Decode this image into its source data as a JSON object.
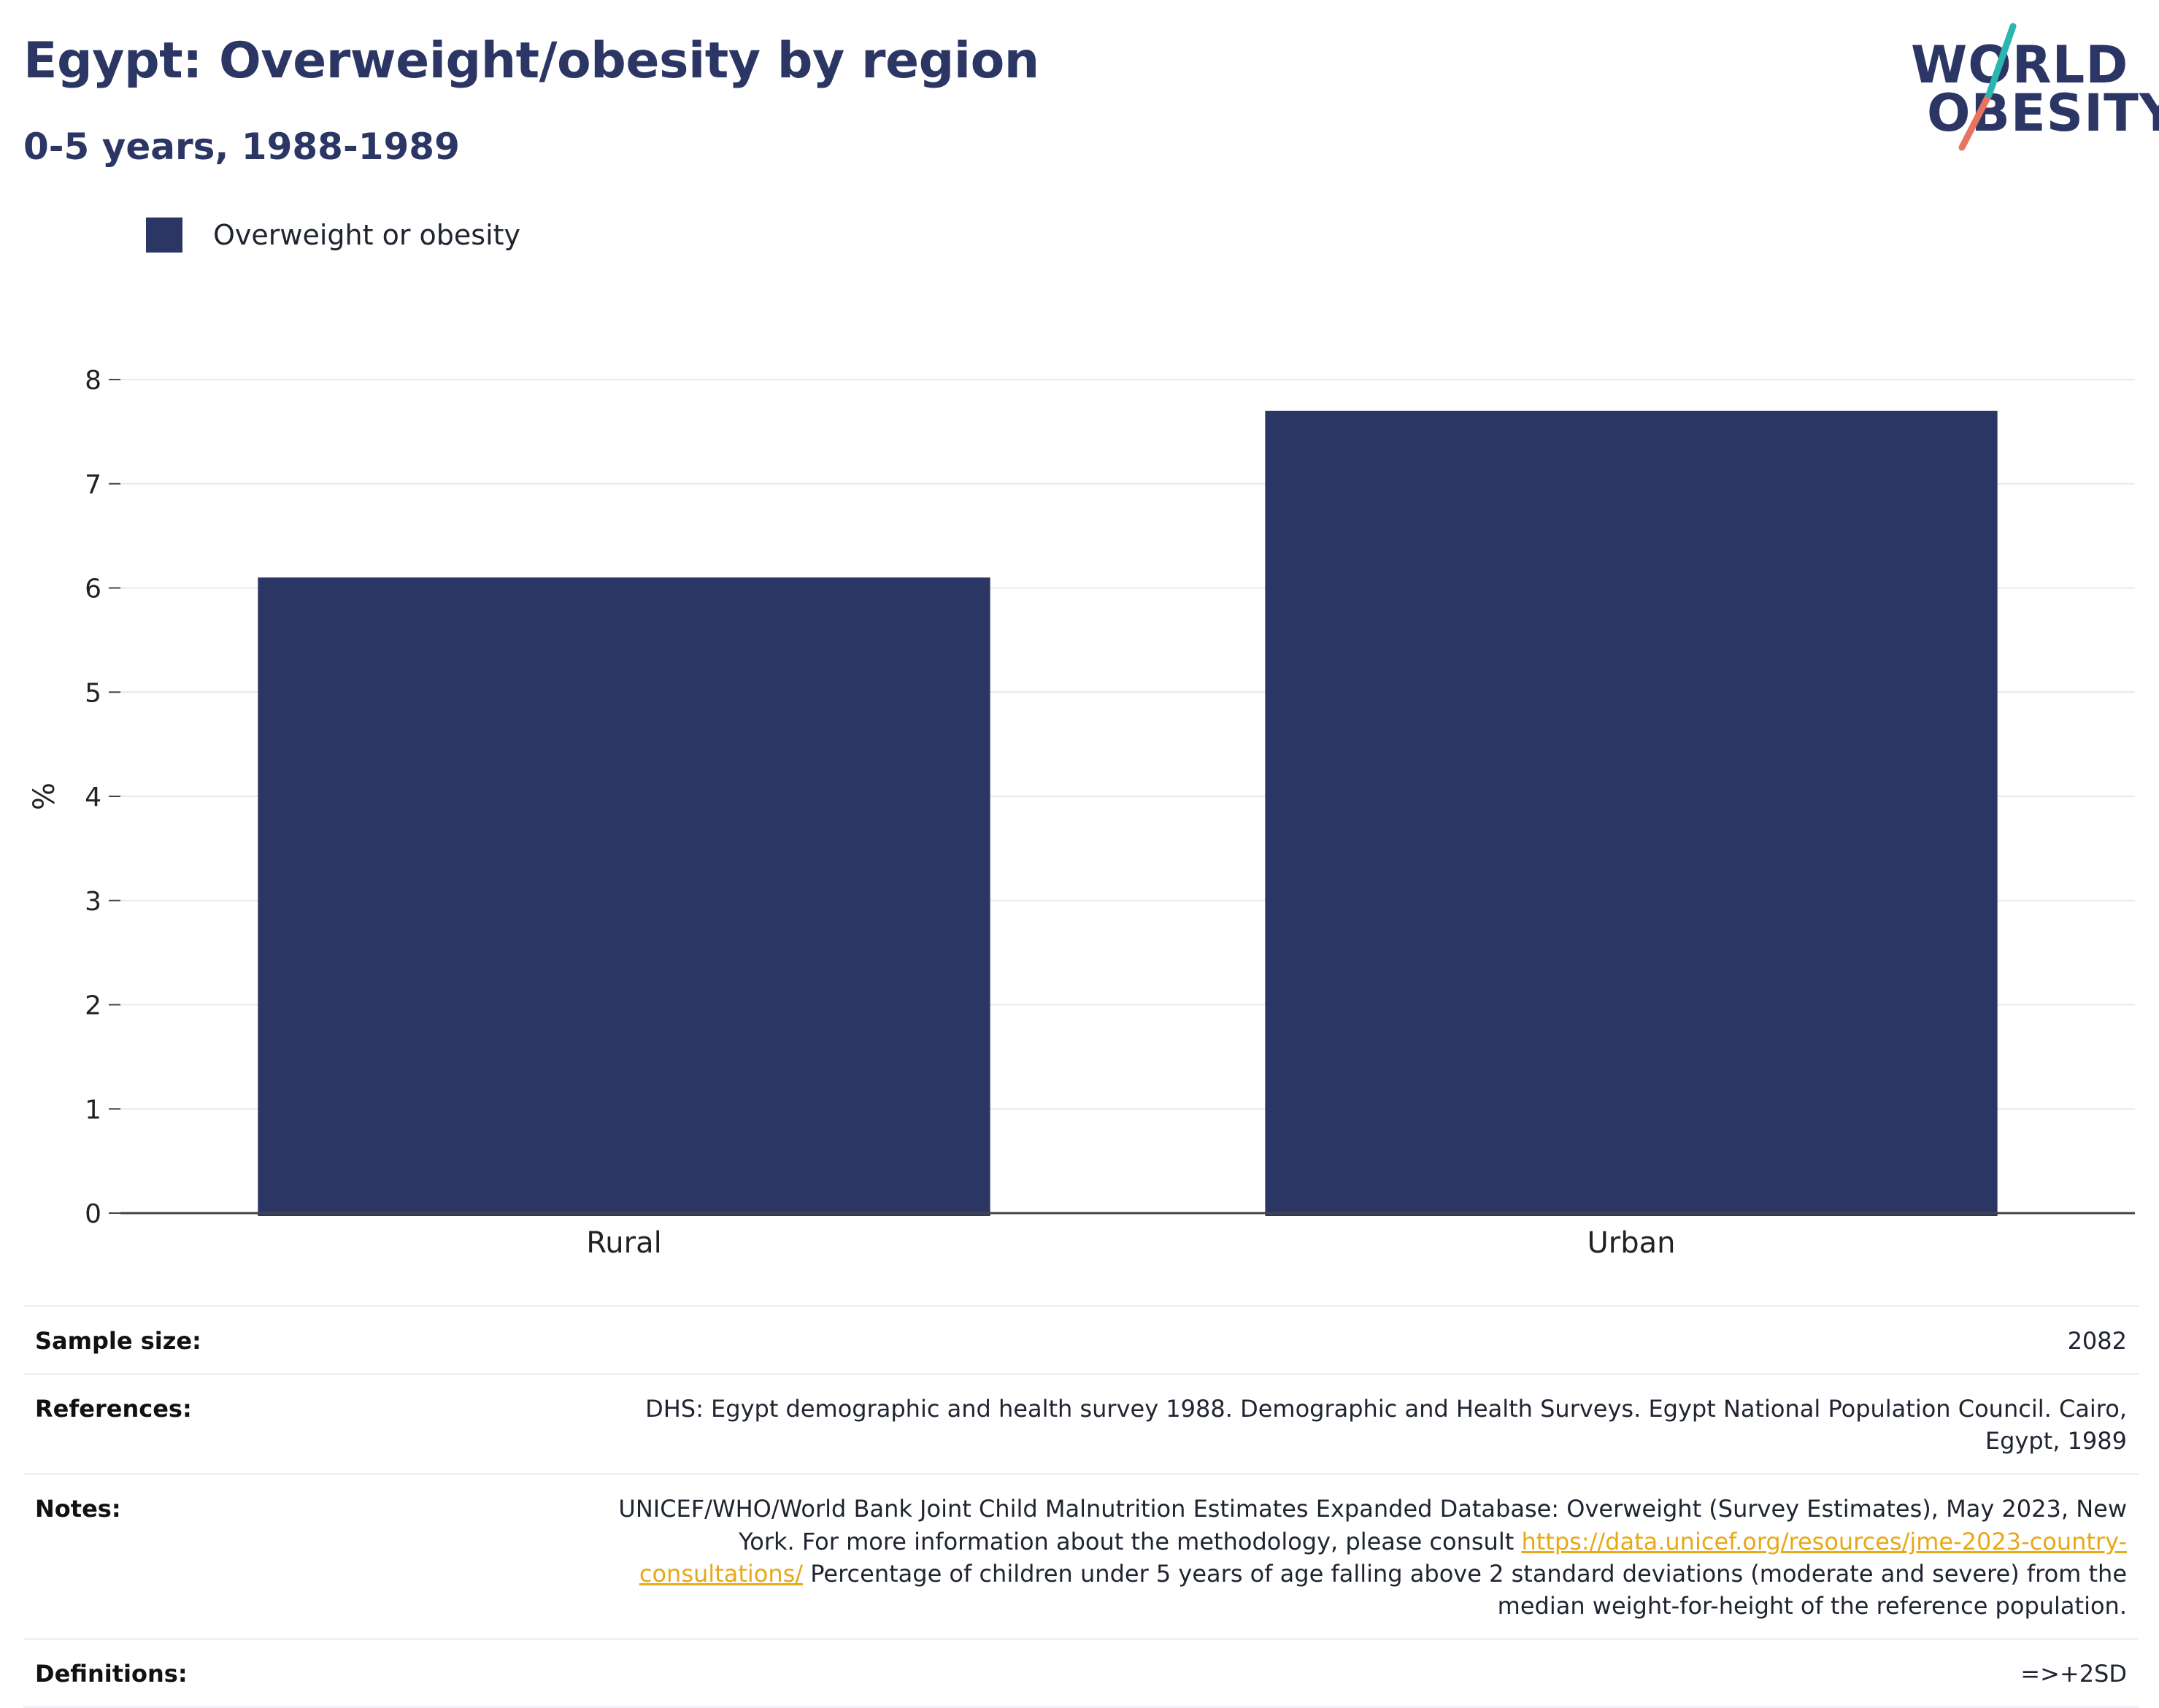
{
  "header": {
    "title": "Egypt: Overweight/obesity by region",
    "subtitle": "0-5 years, 1988-1989"
  },
  "logo": {
    "line1": "WORLD",
    "line2": "OBESITY"
  },
  "colors": {
    "bar": "#2b3664",
    "title": "#2b3664",
    "link": "#e8a817",
    "logo_teal": "#2bb5b1",
    "logo_coral": "#e8735f"
  },
  "chart_data": {
    "type": "bar",
    "categories": [
      "Rural",
      "Urban"
    ],
    "series": [
      {
        "name": "Overweight or obesity",
        "values": [
          6.1,
          7.7
        ]
      }
    ],
    "ylabel": "%",
    "ylim": [
      0,
      8
    ],
    "yticks": [
      0,
      1,
      2,
      3,
      4,
      5,
      6,
      7,
      8
    ],
    "grid": true,
    "legend_position": "top-left"
  },
  "info": {
    "sample_size": {
      "label": "Sample size:",
      "value": "2082"
    },
    "references": {
      "label": "References:",
      "value": "DHS: Egypt demographic and health survey 1988. Demographic and Health Surveys. Egypt National Population Council. Cairo, Egypt, 1989"
    },
    "notes": {
      "label": "Notes:",
      "text_before": "UNICEF/WHO/World Bank Joint Child Malnutrition Estimates Expanded Database: Overweight (Survey Estimates), May 2023, New York. For more information about the methodology, please consult ",
      "link": "https://data.unicef.org/resources/jme-2023-country-consultations/",
      "text_after": " Percentage of children under 5 years of age falling above 2 standard deviations (moderate and severe) from the median weight-for-height of the reference population."
    },
    "definitions": {
      "label": "Definitions:",
      "value": "=>+2SD"
    }
  }
}
